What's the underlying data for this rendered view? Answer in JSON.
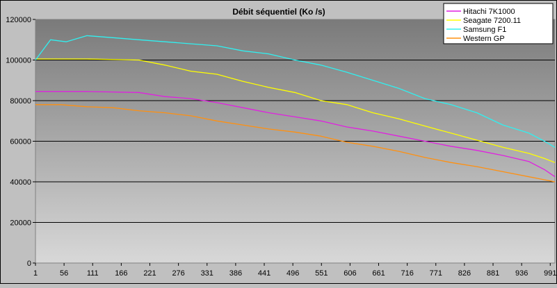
{
  "chart_data": {
    "type": "line",
    "title": "Débit séquentiel (Ko /s)",
    "xlabel": "",
    "ylabel": "",
    "ylim": [
      0,
      120000
    ],
    "xlim": [
      1,
      1000
    ],
    "y_ticks": [
      "0",
      "20000",
      "40000",
      "60000",
      "80000",
      "100000",
      "120000"
    ],
    "x_ticks": [
      "1",
      "56",
      "111",
      "166",
      "221",
      "276",
      "331",
      "386",
      "441",
      "496",
      "551",
      "606",
      "661",
      "716",
      "771",
      "826",
      "881",
      "936",
      "991"
    ],
    "x_tick_values": [
      1,
      56,
      111,
      166,
      221,
      276,
      331,
      386,
      441,
      496,
      551,
      606,
      661,
      716,
      771,
      826,
      881,
      936,
      991
    ],
    "grid": "horizontal",
    "legend_position": "top-right",
    "background": "gradient dark-gray to light-gray",
    "series": [
      {
        "name": "Hitachi 7K1000",
        "color": "#e020e0",
        "x": [
          1,
          100,
          200,
          250,
          300,
          350,
          400,
          450,
          500,
          550,
          600,
          650,
          700,
          750,
          800,
          850,
          900,
          950,
          980,
          1000
        ],
        "y": [
          84500,
          84500,
          84000,
          82000,
          81000,
          79000,
          76500,
          74000,
          72000,
          70000,
          67000,
          65000,
          62500,
          60000,
          57500,
          55500,
          53000,
          50000,
          46000,
          42500
        ]
      },
      {
        "name": "Seagate 7200.11",
        "color": "#ffff00",
        "x": [
          1,
          100,
          200,
          250,
          300,
          350,
          400,
          450,
          500,
          550,
          600,
          650,
          700,
          750,
          800,
          850,
          900,
          950,
          980,
          1000
        ],
        "y": [
          100500,
          100500,
          100000,
          97500,
          94500,
          93000,
          89500,
          86500,
          84000,
          80000,
          78000,
          74000,
          71000,
          67500,
          64000,
          60500,
          57000,
          54000,
          51500,
          49500
        ]
      },
      {
        "name": "Samsung F1",
        "color": "#30f0f0",
        "x": [
          1,
          30,
          60,
          100,
          150,
          200,
          250,
          300,
          350,
          400,
          450,
          500,
          550,
          600,
          650,
          700,
          750,
          800,
          850,
          900,
          950,
          980,
          1000
        ],
        "y": [
          100000,
          110000,
          109000,
          112000,
          111000,
          110000,
          109000,
          108000,
          107000,
          104500,
          103000,
          100000,
          97500,
          94000,
          90000,
          86000,
          81000,
          78000,
          74000,
          68000,
          64000,
          60000,
          57000
        ]
      },
      {
        "name": "Western GP",
        "color": "#ff9010",
        "x": [
          1,
          50,
          100,
          150,
          200,
          250,
          300,
          350,
          400,
          450,
          500,
          550,
          600,
          650,
          700,
          750,
          800,
          850,
          900,
          950,
          1000
        ],
        "y": [
          78000,
          78000,
          77000,
          76500,
          75000,
          74000,
          72500,
          70000,
          68000,
          66000,
          64500,
          62500,
          59500,
          57500,
          55000,
          52000,
          49500,
          47500,
          45000,
          42500,
          40000
        ]
      }
    ]
  }
}
